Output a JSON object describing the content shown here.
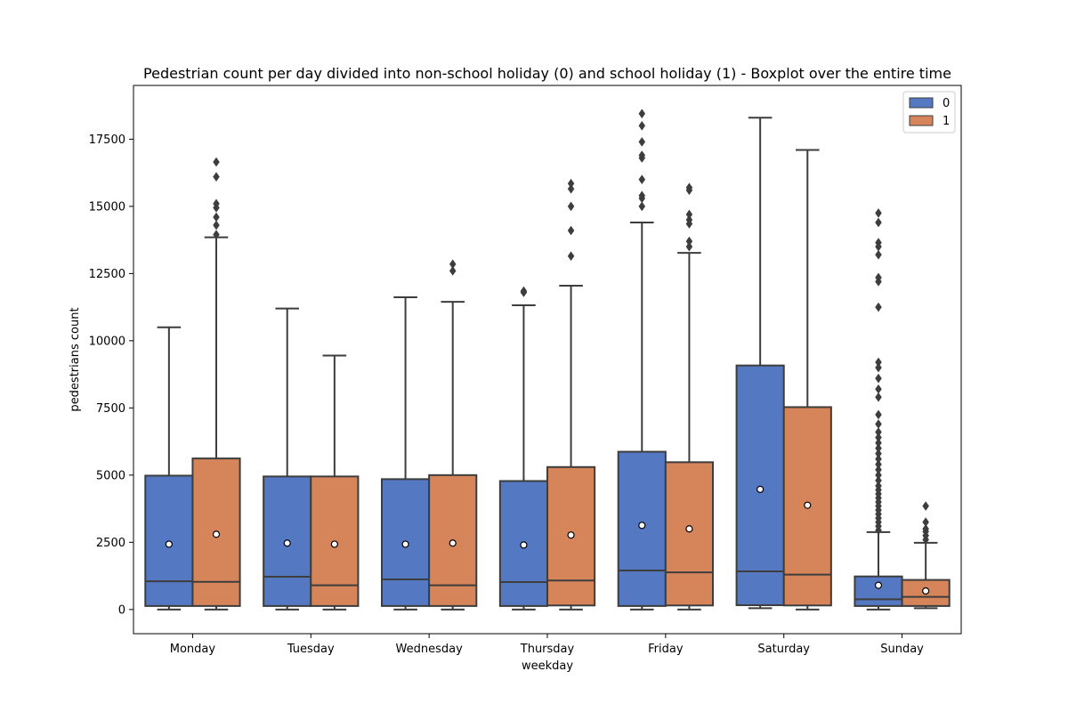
{
  "chart_data": {
    "type": "boxplot",
    "title": "Pedestrian count per day divided into non-school holiday (0) and school holiday (1) - Boxplot over the entire time",
    "xlabel": "weekday",
    "ylabel": "pedestrians count",
    "ylim": [
      -900,
      19500
    ],
    "yticks": [
      0,
      2500,
      5000,
      7500,
      10000,
      12500,
      15000,
      17500
    ],
    "ytick_labels": [
      "0",
      "2500",
      "5000",
      "7500",
      "10000",
      "12500",
      "15000",
      "17500"
    ],
    "categories": [
      "Monday",
      "Tuesday",
      "Wednesday",
      "Thursday",
      "Friday",
      "Saturday",
      "Sunday"
    ],
    "legend": {
      "placement": "top-right",
      "entries": [
        "0",
        "1"
      ]
    },
    "grid": false,
    "series": [
      {
        "name": "0",
        "color": "#5578c3",
        "boxes": [
          {
            "whisker_low": 0,
            "q1": 130,
            "median": 1050,
            "q3": 4980,
            "whisker_high": 10500,
            "mean": 2430,
            "outliers": []
          },
          {
            "whisker_low": 0,
            "q1": 130,
            "median": 1220,
            "q3": 4950,
            "whisker_high": 11200,
            "mean": 2470,
            "outliers": []
          },
          {
            "whisker_low": 0,
            "q1": 130,
            "median": 1120,
            "q3": 4850,
            "whisker_high": 11620,
            "mean": 2430,
            "outliers": []
          },
          {
            "whisker_low": 0,
            "q1": 130,
            "median": 1020,
            "q3": 4780,
            "whisker_high": 11320,
            "mean": 2400,
            "outliers": [
              11800,
              11850
            ]
          },
          {
            "whisker_low": 0,
            "q1": 130,
            "median": 1450,
            "q3": 5870,
            "whisker_high": 14400,
            "mean": 3130,
            "outliers": [
              15000,
              15300,
              15400,
              16000,
              16800,
              16900,
              17400,
              18000,
              18450
            ]
          },
          {
            "whisker_low": 50,
            "q1": 160,
            "median": 1420,
            "q3": 9080,
            "whisker_high": 18300,
            "mean": 4470,
            "outliers": []
          },
          {
            "whisker_low": 0,
            "q1": 130,
            "median": 380,
            "q3": 1230,
            "whisker_high": 2880,
            "mean": 900,
            "outliers": [
              2950,
              3100,
              3250,
              3400,
              3550,
              3700,
              3850,
              4000,
              4150,
              4300,
              4450,
              4600,
              4800,
              5000,
              5200,
              5400,
              5600,
              5800,
              6000,
              6200,
              6400,
              6600,
              6900,
              7250,
              7900,
              8200,
              8600,
              9000,
              9200,
              11250,
              12200,
              12350,
              13200,
              13500,
              13650,
              14400,
              14750
            ]
          }
        ]
      },
      {
        "name": "1",
        "color": "#d6845a",
        "boxes": [
          {
            "whisker_low": 0,
            "q1": 130,
            "median": 1030,
            "q3": 5620,
            "whisker_high": 13850,
            "mean": 2800,
            "outliers": [
              13950,
              14300,
              14600,
              14950,
              15100,
              16100,
              16650
            ]
          },
          {
            "whisker_low": 0,
            "q1": 130,
            "median": 900,
            "q3": 4950,
            "whisker_high": 9450,
            "mean": 2430,
            "outliers": []
          },
          {
            "whisker_low": 0,
            "q1": 130,
            "median": 900,
            "q3": 5000,
            "whisker_high": 11450,
            "mean": 2470,
            "outliers": [
              12600,
              12850
            ]
          },
          {
            "whisker_low": 0,
            "q1": 150,
            "median": 1080,
            "q3": 5300,
            "whisker_high": 12050,
            "mean": 2770,
            "outliers": [
              13150,
              14100,
              15000,
              15650,
              15850
            ]
          },
          {
            "whisker_low": 0,
            "q1": 150,
            "median": 1380,
            "q3": 5480,
            "whisker_high": 13270,
            "mean": 3000,
            "outliers": [
              13500,
              13700,
              14350,
              14500,
              14700,
              15600,
              15700
            ]
          },
          {
            "whisker_low": 0,
            "q1": 150,
            "median": 1300,
            "q3": 7530,
            "whisker_high": 17100,
            "mean": 3880,
            "outliers": []
          },
          {
            "whisker_low": 50,
            "q1": 130,
            "median": 470,
            "q3": 1100,
            "whisker_high": 2480,
            "mean": 690,
            "outliers": [
              2600,
              2750,
              2900,
              3000,
              3250,
              3850
            ]
          }
        ]
      }
    ]
  }
}
